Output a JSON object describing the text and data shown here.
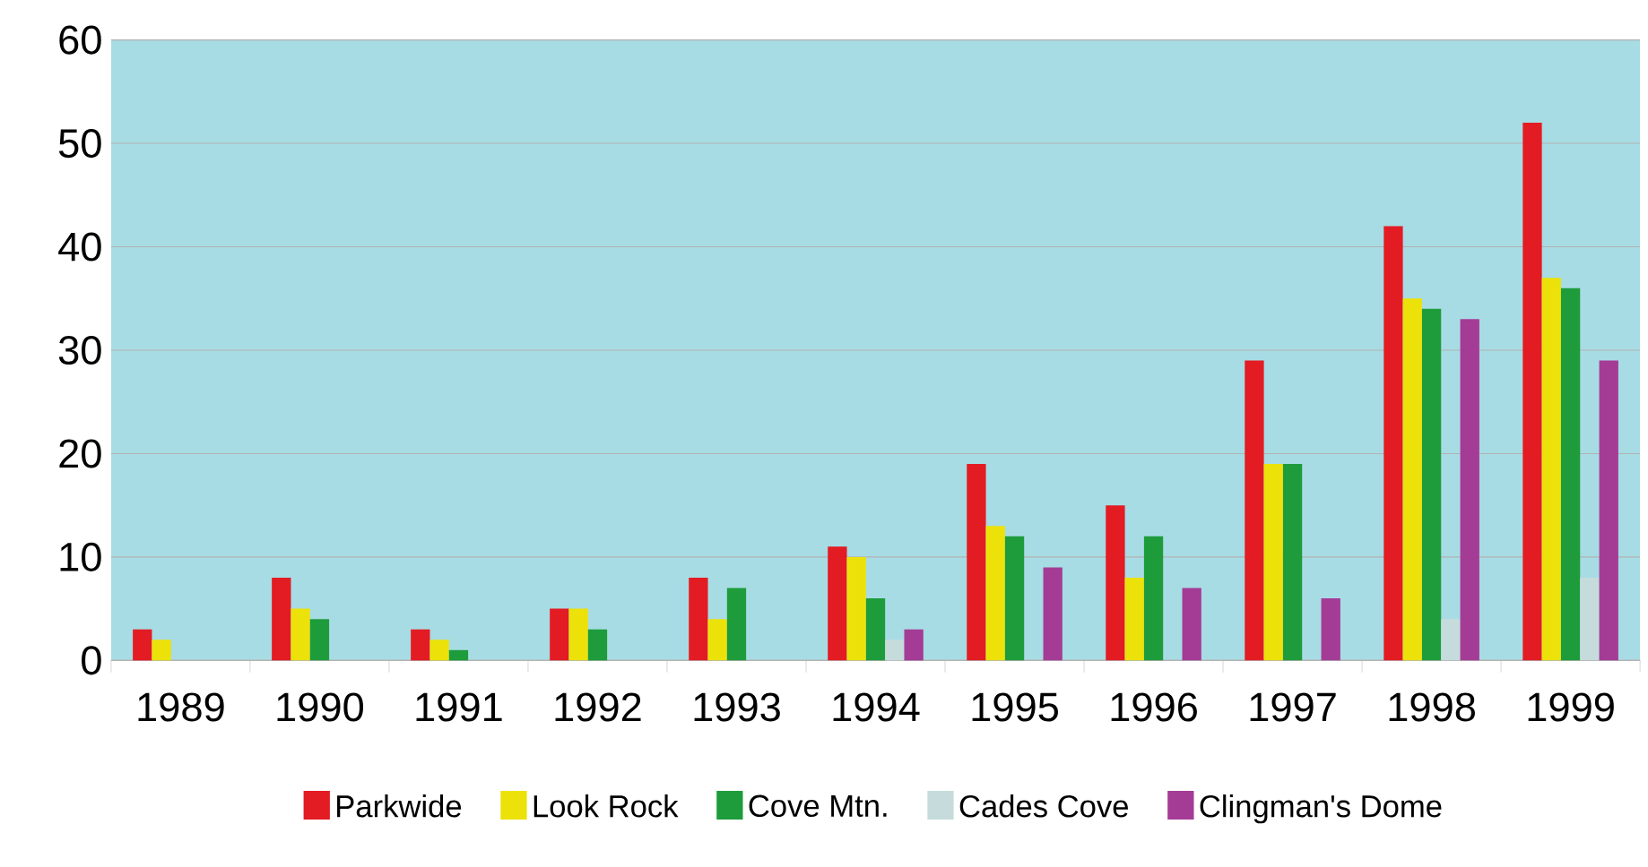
{
  "chart_data": {
    "type": "bar",
    "categories": [
      "1989",
      "1990",
      "1991",
      "1992",
      "1993",
      "1994",
      "1995",
      "1996",
      "1997",
      "1998",
      "1999"
    ],
    "series": [
      {
        "name": "Parkwide",
        "color": "#e31b23",
        "values": [
          3,
          8,
          3,
          5,
          8,
          11,
          19,
          15,
          29,
          42,
          52
        ]
      },
      {
        "name": "Look Rock",
        "color": "#ece20a",
        "values": [
          2,
          5,
          2,
          5,
          4,
          10,
          13,
          8,
          19,
          35,
          37
        ]
      },
      {
        "name": "Cove Mtn.",
        "color": "#1e9c3c",
        "values": [
          null,
          4,
          1,
          3,
          7,
          6,
          12,
          12,
          19,
          34,
          36
        ]
      },
      {
        "name": "Cades Cove",
        "color": "#c6dcdc",
        "values": [
          null,
          null,
          null,
          null,
          null,
          2,
          null,
          null,
          null,
          4,
          8
        ]
      },
      {
        "name": "Clingman's Dome",
        "color": "#a43c96",
        "values": [
          null,
          null,
          null,
          null,
          null,
          3,
          9,
          7,
          6,
          33,
          29
        ]
      }
    ],
    "ylim": [
      0,
      60
    ],
    "yticks": [
      0,
      10,
      20,
      30,
      40,
      50,
      60
    ],
    "grid": "y",
    "legend": "bottom"
  }
}
